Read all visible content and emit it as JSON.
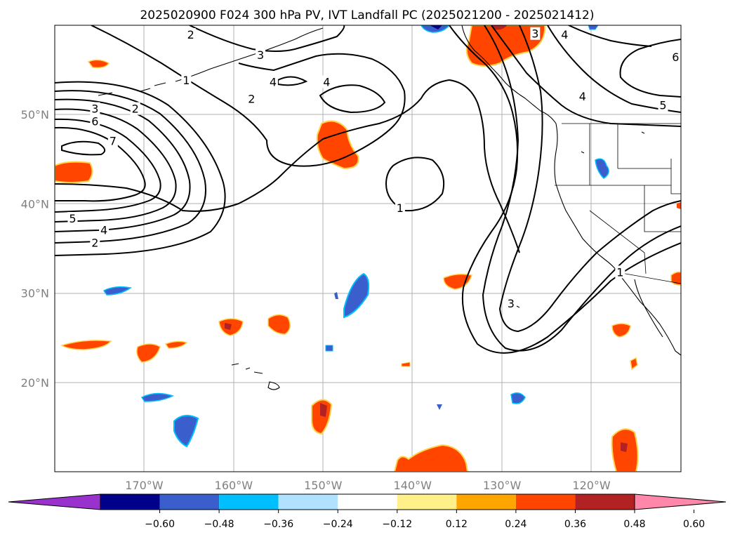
{
  "map": {
    "title": "2025020900 F024 300 hPa PV, IVT Landfall PC (2025021200 - 2025021412)",
    "extent": {
      "lon": [
        -180,
        -110
      ],
      "lat": [
        10,
        60
      ]
    },
    "lat_labels": [
      {
        "lat": 50,
        "text": "50°N"
      },
      {
        "lat": 40,
        "text": "40°N"
      },
      {
        "lat": 30,
        "text": "30°N"
      },
      {
        "lat": 20,
        "text": "20°N"
      }
    ],
    "lon_labels": [
      {
        "lon": -170,
        "text": "170°W"
      },
      {
        "lon": -160,
        "text": "160°W"
      },
      {
        "lon": -150,
        "text": "150°W"
      },
      {
        "lon": -140,
        "text": "140°W"
      },
      {
        "lon": -130,
        "text": "130°W"
      },
      {
        "lon": -120,
        "text": "120°W"
      }
    ],
    "contour_labels": [
      {
        "text": "2",
        "lon": -171.0,
        "lat": 50.6
      },
      {
        "text": "3",
        "lon": -175.5,
        "lat": 50.6
      },
      {
        "text": "6",
        "lon": -175.5,
        "lat": 49.2
      },
      {
        "text": "7",
        "lon": -173.5,
        "lat": 47.0
      },
      {
        "text": "5",
        "lon": -178.0,
        "lat": 38.3
      },
      {
        "text": "4",
        "lon": -174.5,
        "lat": 37.0
      },
      {
        "text": "2",
        "lon": -175.5,
        "lat": 35.6
      },
      {
        "text": "1",
        "lon": -165.3,
        "lat": 53.8
      },
      {
        "text": "2",
        "lon": -158.0,
        "lat": 51.7
      },
      {
        "text": "3",
        "lon": -157.0,
        "lat": 56.6
      },
      {
        "text": "4",
        "lon": -155.6,
        "lat": 53.6
      },
      {
        "text": "4",
        "lon": -149.6,
        "lat": 53.6
      },
      {
        "text": "2",
        "lon": -164.8,
        "lat": 58.9
      },
      {
        "text": "1",
        "lon": -141.4,
        "lat": 39.5
      },
      {
        "text": "3",
        "lon": -126.3,
        "lat": 59.0
      },
      {
        "text": "4",
        "lon": -123.0,
        "lat": 58.9
      },
      {
        "text": "4",
        "lon": -121.0,
        "lat": 52.0
      },
      {
        "text": "5",
        "lon": -112.0,
        "lat": 51.0
      },
      {
        "text": "6",
        "lon": -110.6,
        "lat": 56.4
      },
      {
        "text": "3",
        "lon": -129.0,
        "lat": 28.8
      },
      {
        "text": "1",
        "lon": -116.8,
        "lat": 32.3
      }
    ]
  },
  "colorbar": {
    "colors": [
      "#9932cc",
      "#00008b",
      "#3a5fcd",
      "#00bfff",
      "#b0e2ff",
      "#ffffff",
      "#fff08a",
      "#ffa500",
      "#ff4500",
      "#b22222",
      "#ff88aa"
    ],
    "ticks": [
      "−0.60",
      "−0.48",
      "−0.36",
      "−0.24",
      "−0.12",
      "0.12",
      "0.24",
      "0.36",
      "0.48",
      "0.60"
    ]
  }
}
